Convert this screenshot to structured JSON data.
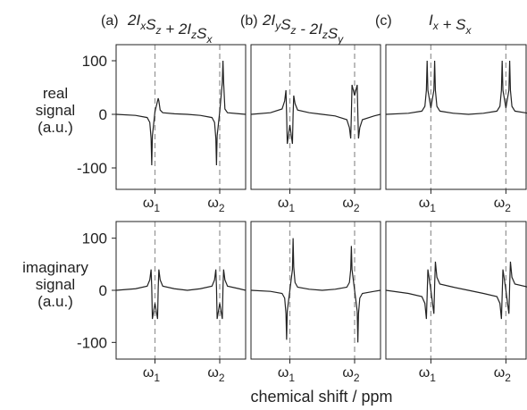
{
  "xlabel": "chemical shift / ppm",
  "row_labels": [
    [
      "real",
      "signal",
      "(a.u.)"
    ],
    [
      "imaginary",
      "signal",
      "(a.u.)"
    ]
  ],
  "chart_data": [
    {
      "type": "line",
      "label": "(a)",
      "title": [
        {
          "t": "2I"
        },
        {
          "sub": "x"
        },
        {
          "t": "S"
        },
        {
          "sub": "z"
        },
        {
          "t": " + 2I"
        },
        {
          "sub": "z"
        },
        {
          "t": "S"
        },
        {
          "sub": "x"
        }
      ],
      "color": "#222222",
      "xlim": [
        0,
        10
      ],
      "xticks": [
        {
          "value": 3,
          "label": "ω",
          "sub": "1"
        },
        {
          "value": 8,
          "label": "ω",
          "sub": "2"
        }
      ],
      "ylim": [
        -140,
        130
      ],
      "yticks": [
        -100,
        0,
        100
      ],
      "x": [
        0,
        1.5,
        2.4,
        2.6,
        2.7,
        2.75,
        2.8,
        3,
        3.2,
        3.25,
        3.3,
        3.4,
        3.6,
        4.5,
        5.5,
        6.5,
        7.4,
        7.6,
        7.7,
        7.75,
        7.8,
        8,
        8.2,
        8.25,
        8.3,
        8.4,
        8.6,
        9.5,
        10
      ],
      "values": [
        0,
        -2,
        -6,
        -15,
        -45,
        -95,
        -40,
        5,
        25,
        30,
        25,
        8,
        3,
        1,
        0,
        -2,
        -6,
        -15,
        -45,
        -95,
        -40,
        5,
        60,
        100,
        60,
        10,
        3,
        1,
        0
      ]
    },
    {
      "type": "line",
      "label": "(b)",
      "title": [
        {
          "t": "2I"
        },
        {
          "sub": "y"
        },
        {
          "t": "S"
        },
        {
          "sub": "z"
        },
        {
          "t": " - 2I"
        },
        {
          "sub": "z"
        },
        {
          "t": "S"
        },
        {
          "sub": "y"
        }
      ],
      "color": "#222222",
      "xlim": [
        0,
        10
      ],
      "xticks": [
        {
          "value": 3,
          "label": "ω",
          "sub": "1"
        },
        {
          "value": 8,
          "label": "ω",
          "sub": "2"
        }
      ],
      "ylim": [
        -140,
        130
      ],
      "x": [
        0,
        1.5,
        2.4,
        2.6,
        2.7,
        2.75,
        2.8,
        3,
        3.2,
        3.25,
        3.3,
        3.4,
        3.6,
        4.5,
        5.5,
        6.5,
        7.4,
        7.6,
        7.7,
        7.75,
        7.8,
        8,
        8.2,
        8.25,
        8.3,
        8.4,
        8.6,
        9.5,
        10
      ],
      "values": [
        0,
        3,
        10,
        25,
        45,
        0,
        -55,
        -20,
        -55,
        0,
        35,
        20,
        8,
        3,
        0,
        -3,
        -10,
        -25,
        -45,
        0,
        55,
        35,
        55,
        0,
        -45,
        -25,
        -10,
        -3,
        0
      ]
    },
    {
      "type": "line",
      "label": "(c)",
      "title": [
        {
          "t": "I"
        },
        {
          "sub": "x"
        },
        {
          "t": " + S"
        },
        {
          "sub": "x"
        }
      ],
      "color": "#222222",
      "xlim": [
        0,
        10
      ],
      "xticks": [
        {
          "value": 3,
          "label": "ω",
          "sub": "1"
        },
        {
          "value": 8,
          "label": "ω",
          "sub": "2"
        }
      ],
      "ylim": [
        -140,
        130
      ],
      "x": [
        0,
        1.5,
        2.4,
        2.6,
        2.7,
        2.75,
        2.8,
        3,
        3.2,
        3.25,
        3.3,
        3.4,
        3.6,
        4.5,
        5.5,
        6.5,
        7.4,
        7.6,
        7.7,
        7.75,
        7.8,
        8,
        8.2,
        8.25,
        8.3,
        8.4,
        8.6,
        9.5,
        10
      ],
      "values": [
        0,
        2,
        6,
        15,
        45,
        100,
        45,
        12,
        45,
        100,
        45,
        15,
        6,
        2,
        0,
        2,
        6,
        15,
        45,
        100,
        45,
        12,
        45,
        100,
        45,
        15,
        6,
        2,
        0
      ]
    },
    {
      "type": "line",
      "color": "#222222",
      "xlim": [
        0,
        10
      ],
      "xticks": [
        {
          "value": 3,
          "label": "ω",
          "sub": "1"
        },
        {
          "value": 8,
          "label": "ω",
          "sub": "2"
        }
      ],
      "ylim": [
        -132,
        132
      ],
      "yticks": [
        -100,
        0,
        100
      ],
      "x": [
        0,
        1.5,
        2.4,
        2.6,
        2.7,
        2.75,
        2.8,
        3,
        3.2,
        3.25,
        3.3,
        3.4,
        3.6,
        4.5,
        5.5,
        6.5,
        7.4,
        7.6,
        7.7,
        7.75,
        7.8,
        8,
        8.2,
        8.25,
        8.3,
        8.4,
        8.6,
        9.5,
        10
      ],
      "values": [
        0,
        3,
        8,
        20,
        40,
        5,
        -55,
        -25,
        -55,
        5,
        40,
        20,
        8,
        3,
        0,
        3,
        8,
        20,
        40,
        5,
        -55,
        -25,
        -55,
        5,
        40,
        20,
        8,
        3,
        0
      ]
    },
    {
      "type": "line",
      "color": "#222222",
      "xlim": [
        0,
        10
      ],
      "xticks": [
        {
          "value": 3,
          "label": "ω",
          "sub": "1"
        },
        {
          "value": 8,
          "label": "ω",
          "sub": "2"
        }
      ],
      "ylim": [
        -132,
        132
      ],
      "x": [
        0,
        1.5,
        2.4,
        2.6,
        2.7,
        2.75,
        2.8,
        3,
        3.2,
        3.25,
        3.3,
        3.4,
        3.6,
        4.5,
        5.5,
        6.5,
        7.4,
        7.6,
        7.7,
        7.75,
        7.8,
        8,
        8.2,
        8.25,
        8.3,
        8.4,
        8.6,
        9.5,
        10
      ],
      "values": [
        0,
        -2,
        -6,
        -15,
        -45,
        -95,
        -40,
        0,
        40,
        100,
        45,
        15,
        6,
        2,
        0,
        2,
        6,
        15,
        40,
        85,
        40,
        0,
        -40,
        -100,
        -45,
        -15,
        -6,
        -2,
        0
      ]
    },
    {
      "type": "line",
      "color": "#222222",
      "xlim": [
        0,
        10
      ],
      "xticks": [
        {
          "value": 3,
          "label": "ω",
          "sub": "1"
        },
        {
          "value": 8,
          "label": "ω",
          "sub": "2"
        }
      ],
      "ylim": [
        -132,
        132
      ],
      "x": [
        0,
        1.5,
        2.4,
        2.6,
        2.7,
        2.75,
        2.8,
        3,
        3.2,
        3.25,
        3.3,
        3.4,
        3.6,
        4.5,
        5.5,
        6.5,
        7.4,
        7.6,
        7.7,
        7.75,
        7.8,
        8,
        8.2,
        8.25,
        8.3,
        8.4,
        8.6,
        9.5,
        10
      ],
      "values": [
        0,
        -6,
        -12,
        -25,
        -55,
        -10,
        40,
        0,
        -45,
        10,
        55,
        25,
        12,
        6,
        0,
        -6,
        -12,
        -25,
        -55,
        -10,
        40,
        0,
        -45,
        10,
        55,
        25,
        12,
        6,
        0
      ]
    }
  ]
}
